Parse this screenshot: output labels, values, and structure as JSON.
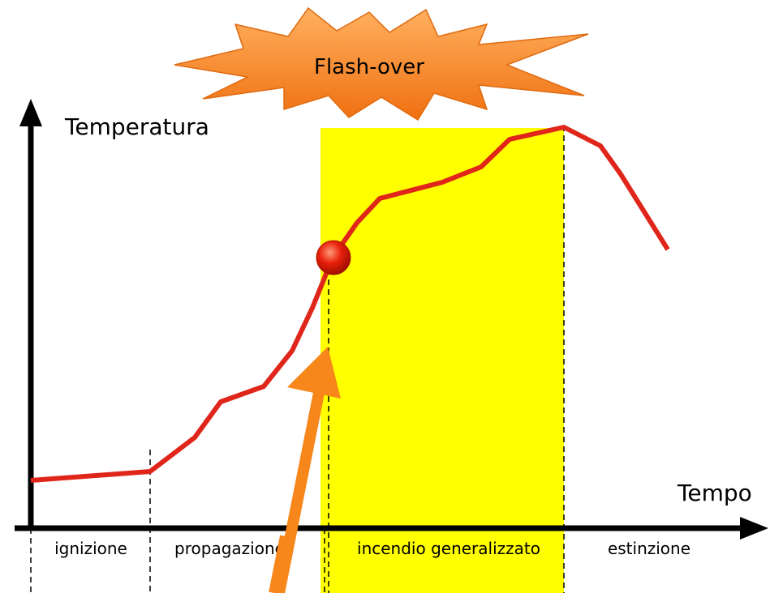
{
  "flash_label": "Flash-over",
  "y_axis_label": "Temperatura",
  "x_axis_label": "Tempo",
  "phases": [
    "ignizione",
    "propagazione",
    "incendio generalizzato",
    "estinzione"
  ]
}
